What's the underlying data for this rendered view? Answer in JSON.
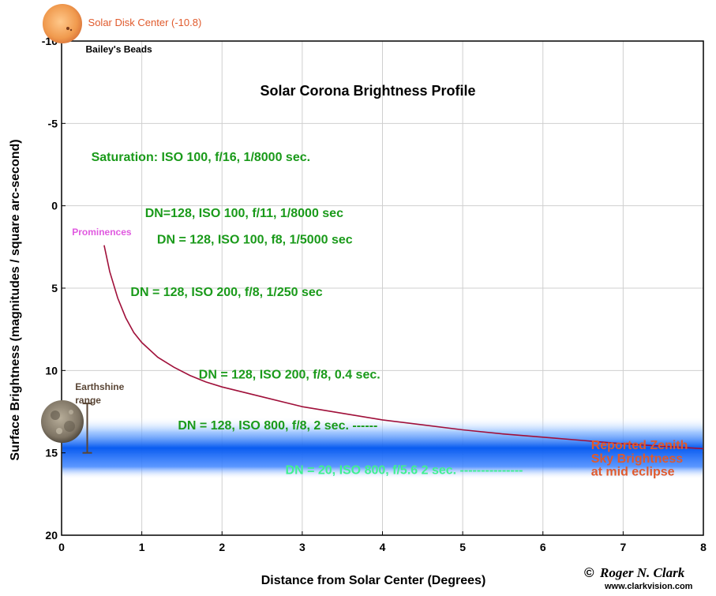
{
  "chart_data": {
    "type": "line",
    "title": "Solar Corona Brightness Profile",
    "xlabel": "Distance from Solar Center (Degrees)",
    "ylabel": "Surface Brightness (magnitudes / square arc-second)",
    "xlim": [
      0,
      8
    ],
    "ylim": [
      -10,
      20
    ],
    "y_inverted": true,
    "grid": true,
    "x_ticks": [
      "0",
      "1",
      "2",
      "3",
      "4",
      "5",
      "6",
      "7",
      "8"
    ],
    "y_ticks": [
      "-10",
      "-5",
      "0",
      "5",
      "10",
      "15",
      "20"
    ],
    "series": [
      {
        "color": "#a0103a",
        "x": [
          0.53,
          0.6,
          0.7,
          0.8,
          0.9,
          1.0,
          1.2,
          1.4,
          1.6,
          1.8,
          2.0,
          2.5,
          3.0,
          3.5,
          4.0,
          4.5,
          5.0,
          5.5,
          6.0,
          6.5,
          7.0,
          7.5,
          8.0
        ],
        "y": [
          2.4,
          4.0,
          5.6,
          6.8,
          7.7,
          8.3,
          9.2,
          9.8,
          10.3,
          10.7,
          11.0,
          11.6,
          12.2,
          12.6,
          13.0,
          13.3,
          13.6,
          13.85,
          14.05,
          14.25,
          14.45,
          14.6,
          14.75
        ]
      }
    ],
    "bands": [
      {
        "name": "sky-brightness-band",
        "y_range": [
          12.8,
          16.6
        ],
        "center": 15.0,
        "color": "#0a5cf0"
      }
    ],
    "error_bar": {
      "x": 0.32,
      "y_range": [
        12.0,
        15.0
      ],
      "color": "#5a4636"
    },
    "annotations": [
      {
        "id": "solar_disk",
        "text": "Solar Disk Center (-10.8)",
        "x": 0.33,
        "y": -11.2,
        "color": "#e05a2c"
      },
      {
        "id": "baileys_beads",
        "text": "Bailey's Beads",
        "x": 0.3,
        "y": -9.6,
        "color": "#000000"
      },
      {
        "id": "saturation",
        "text": "Saturation: ISO 100, f/16, 1/8000 sec.",
        "x": 0.37,
        "y": -3.0,
        "color": "#1a9a1a"
      },
      {
        "id": "dn_f11",
        "text": "DN=128, ISO 100, f/11, 1/8000 sec",
        "x": 1.04,
        "y": 0.4,
        "color": "#1a9a1a"
      },
      {
        "id": "prominences",
        "text": "Prominences",
        "x": 0.13,
        "y": 1.5,
        "color": "#e05ae0"
      },
      {
        "id": "dn_f8_5000",
        "text": "DN = 128, ISO 100, f8, 1/5000 sec",
        "x": 1.19,
        "y": 2.0,
        "color": "#1a9a1a"
      },
      {
        "id": "dn_iso200_250",
        "text": "DN = 128, ISO 200, f/8, 1/250 sec",
        "x": 0.86,
        "y": 5.2,
        "color": "#1a9a1a"
      },
      {
        "id": "dn_iso200_04",
        "text": "DN = 128, ISO 200, f/8, 0.4 sec.",
        "x": 1.71,
        "y": 10.2,
        "color": "#1a9a1a"
      },
      {
        "id": "earthshine",
        "text": "Earthshine",
        "x": 0.17,
        "y": 10.9,
        "color": "#5a4636"
      },
      {
        "id": "earthshine_range",
        "text": "range",
        "x": 0.17,
        "y": 11.7,
        "color": "#5a4636"
      },
      {
        "id": "dn_iso800_2",
        "text": "DN = 128, ISO 800, f/8, 2 sec. ------",
        "x": 1.45,
        "y": 13.3,
        "color": "#1a9a1a"
      },
      {
        "id": "dn20",
        "text": "DN = 20, ISO 800, f/5.6 2 sec. ---------------",
        "x": 2.79,
        "y": 16.0,
        "color": "#40f090"
      },
      {
        "id": "zenith1",
        "text": "Reported Zenith",
        "x": 6.6,
        "y": 14.5,
        "color": "#e05a2c"
      },
      {
        "id": "zenith2",
        "text": "Sky Brightness",
        "x": 6.6,
        "y": 15.3,
        "color": "#e05a2c"
      },
      {
        "id": "zenith3",
        "text": "at mid eclipse",
        "x": 6.6,
        "y": 16.1,
        "color": "#e05a2c"
      }
    ]
  },
  "credit": {
    "copyright_symbol": "©",
    "name": "Roger N. Clark",
    "url": "www.clarkvision.com"
  },
  "icons": {
    "sun": "sun-icon",
    "moon": "moon-icon"
  }
}
